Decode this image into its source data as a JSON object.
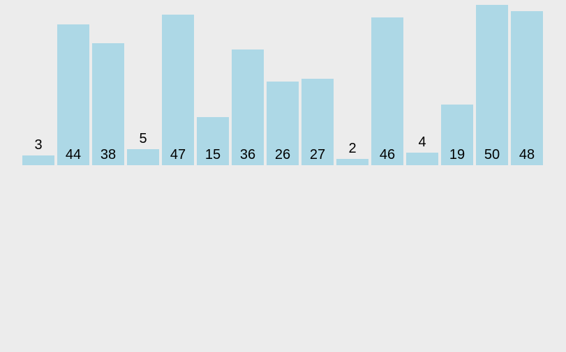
{
  "chart_data": {
    "type": "bar",
    "title": "",
    "xlabel": "",
    "ylabel": "",
    "values": [
      3,
      44,
      38,
      5,
      47,
      15,
      36,
      26,
      27,
      2,
      46,
      4,
      19,
      50,
      48
    ],
    "bar_labels": [
      "3",
      "44",
      "38",
      "5",
      "47",
      "15",
      "36",
      "26",
      "27",
      "2",
      "46",
      "4",
      "19",
      "50",
      "48"
    ],
    "ylim": [
      0,
      50
    ],
    "grid": false,
    "legend": false,
    "axes_visible": false,
    "bar_color": "#ADD8E6",
    "background_color": "#ECECEC",
    "label_color": "#000000"
  }
}
